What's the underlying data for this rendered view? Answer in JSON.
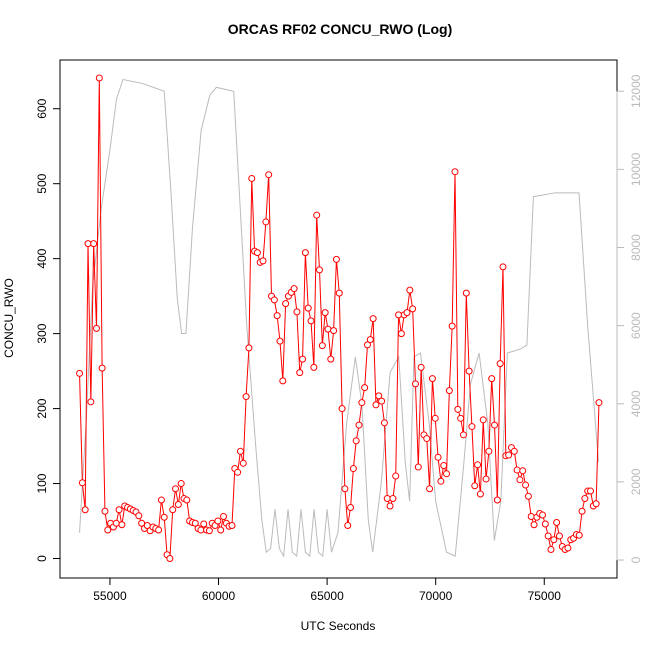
{
  "chart_data": {
    "type": "line",
    "title": "ORCAS RF02 CONCU_RWO (Log)",
    "x_label": "UTC Seconds",
    "y_label": "CONCU_RWO",
    "xlim": [
      52700,
      78350
    ],
    "ylim": [
      -26,
      665
    ],
    "y2lim": [
      -460,
      12800
    ],
    "xticks": [
      55000,
      60000,
      65000,
      70000,
      75000
    ],
    "yticks": [
      0,
      100,
      200,
      300,
      400,
      500,
      600
    ],
    "y2ticks": [
      0,
      2000,
      4000,
      6000,
      8000,
      10000,
      12000
    ],
    "y2_color": "#bbbbbb",
    "series": [
      {
        "color": "#ff0000",
        "marker": "circle",
        "x": [
          53600,
          53730,
          53860,
          53990,
          54120,
          54250,
          54380,
          54510,
          54640,
          54770,
          54900,
          55030,
          55160,
          55290,
          55420,
          55550,
          55680,
          55810,
          55940,
          56070,
          56200,
          56330,
          56460,
          56590,
          56720,
          56850,
          56980,
          57110,
          57240,
          57370,
          57500,
          57630,
          57760,
          57890,
          58020,
          58150,
          58280,
          58410,
          58540,
          58670,
          58800,
          58930,
          59060,
          59190,
          59320,
          59450,
          59580,
          59710,
          59840,
          59970,
          60100,
          60230,
          60360,
          60490,
          60620,
          60750,
          60880,
          61010,
          61140,
          61270,
          61400,
          61530,
          61660,
          61790,
          61920,
          62050,
          62180,
          62310,
          62440,
          62570,
          62700,
          62830,
          62960,
          63090,
          63220,
          63350,
          63480,
          63610,
          63740,
          63870,
          64000,
          64130,
          64260,
          64390,
          64520,
          64650,
          64780,
          64910,
          65040,
          65170,
          65300,
          65430,
          65560,
          65690,
          65820,
          65950,
          66080,
          66210,
          66340,
          66470,
          66600,
          66730,
          66860,
          66990,
          67120,
          67250,
          67380,
          67510,
          67640,
          67770,
          67900,
          68030,
          68160,
          68290,
          68420,
          68550,
          68680,
          68810,
          68940,
          69070,
          69200,
          69330,
          69460,
          69590,
          69720,
          69850,
          69980,
          70110,
          70240,
          70370,
          70500,
          70630,
          70760,
          70890,
          71020,
          71150,
          71280,
          71410,
          71540,
          71670,
          71800,
          71930,
          72060,
          72190,
          72320,
          72450,
          72580,
          72710,
          72840,
          72970,
          73100,
          73230,
          73360,
          73490,
          73620,
          73750,
          73880,
          74010,
          74140,
          74270,
          74400,
          74530,
          74660,
          74790,
          74920,
          75050,
          75180,
          75310,
          75440,
          75570,
          75700,
          75830,
          75960,
          76090,
          76220,
          76350,
          76480,
          76610,
          76740,
          76870,
          77000,
          77130,
          77260,
          77390,
          77520
        ],
        "values": [
          247,
          101,
          65,
          420,
          209,
          420,
          307,
          641,
          254,
          63,
          38,
          47,
          42,
          47,
          65,
          45,
          70,
          68,
          66,
          64,
          62,
          57,
          47,
          40,
          44,
          37,
          42,
          40,
          38,
          78,
          55,
          5,
          0,
          65,
          93,
          72,
          100,
          80,
          78,
          50,
          48,
          47,
          40,
          38,
          46,
          38,
          37,
          47,
          44,
          50,
          38,
          56,
          47,
          43,
          44,
          120,
          115,
          143,
          127,
          216,
          281,
          507,
          410,
          408,
          395,
          397,
          449,
          512,
          350,
          345,
          324,
          290,
          237,
          340,
          350,
          355,
          360,
          329,
          248,
          266,
          408,
          334,
          317,
          255,
          458,
          385,
          284,
          328,
          306,
          266,
          304,
          399,
          354,
          200,
          93,
          44,
          68,
          120,
          157,
          178,
          208,
          228,
          285,
          292,
          320,
          205,
          217,
          210,
          181,
          80,
          70,
          80,
          110,
          325,
          300,
          325,
          328,
          358,
          333,
          233,
          122,
          255,
          165,
          160,
          93,
          240,
          187,
          135,
          103,
          124,
          113,
          224,
          310,
          516,
          199,
          187,
          165,
          354,
          250,
          176,
          97,
          125,
          86,
          185,
          106,
          143,
          240,
          178,
          78,
          260,
          389,
          137,
          138,
          148,
          143,
          118,
          105,
          117,
          98,
          83,
          56,
          45,
          55,
          60,
          58,
          46,
          30,
          12,
          25,
          48,
          30,
          16,
          12,
          14,
          25,
          27,
          32,
          31,
          63,
          80,
          90,
          90,
          70,
          73,
          208
        ]
      },
      {
        "color": "#bbbbbb",
        "axis": "y2",
        "x": [
          53600,
          53900,
          54200,
          54600,
          55000,
          55300,
          55600,
          56500,
          57500,
          57800,
          58100,
          58300,
          58500,
          58800,
          59200,
          59600,
          59900,
          60700,
          61000,
          61300,
          61700,
          62000,
          62200,
          62400,
          62600,
          62800,
          63000,
          63200,
          63400,
          63600,
          63800,
          64000,
          64200,
          64400,
          64600,
          64800,
          65000,
          65200,
          65500,
          65900,
          66300,
          66600,
          66900,
          67100,
          67500,
          67900,
          68300,
          68600,
          68800,
          69000,
          69300,
          69700,
          70000,
          70500,
          70900,
          71300,
          71600,
          72000,
          72400,
          72700,
          73000,
          73300,
          73900,
          74200,
          74500,
          75500,
          76600,
          77000,
          77500
        ],
        "values": [
          700,
          3500,
          7000,
          9000,
          10500,
          11800,
          12300,
          12200,
          12000,
          9500,
          6700,
          5800,
          5800,
          8500,
          11000,
          11900,
          12100,
          12000,
          9000,
          6000,
          3000,
          1000,
          200,
          300,
          1300,
          300,
          100,
          1300,
          200,
          100,
          1300,
          200,
          100,
          1300,
          200,
          100,
          1300,
          200,
          700,
          3500,
          5200,
          4000,
          1000,
          200,
          2000,
          4800,
          5200,
          2500,
          1500,
          5200,
          5300,
          3500,
          1500,
          200,
          100,
          2500,
          4500,
          5300,
          3500,
          500,
          1500,
          5300,
          5400,
          5500,
          9300,
          9400,
          9400,
          6000,
          2500
        ]
      }
    ]
  }
}
